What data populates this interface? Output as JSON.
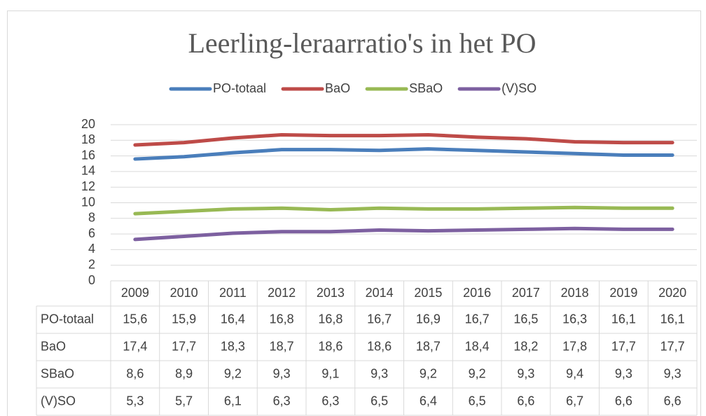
{
  "chart_data": {
    "type": "line",
    "title": "Leerling-leraarratio's in het PO",
    "categories": [
      "2009",
      "2010",
      "2011",
      "2012",
      "2013",
      "2014",
      "2015",
      "2016",
      "2017",
      "2018",
      "2019",
      "2020"
    ],
    "series": [
      {
        "name": "PO-totaal",
        "color": "#4a7ebb",
        "values": [
          15.6,
          15.9,
          16.4,
          16.8,
          16.8,
          16.7,
          16.9,
          16.7,
          16.5,
          16.3,
          16.1,
          16.1
        ],
        "value_labels": [
          "15,6",
          "15,9",
          "16,4",
          "16,8",
          "16,8",
          "16,7",
          "16,9",
          "16,7",
          "16,5",
          "16,3",
          "16,1",
          "16,1"
        ]
      },
      {
        "name": "BaO",
        "color": "#be4b48",
        "values": [
          17.4,
          17.7,
          18.3,
          18.7,
          18.6,
          18.6,
          18.7,
          18.4,
          18.2,
          17.8,
          17.7,
          17.7
        ],
        "value_labels": [
          "17,4",
          "17,7",
          "18,3",
          "18,7",
          "18,6",
          "18,6",
          "18,7",
          "18,4",
          "18,2",
          "17,8",
          "17,7",
          "17,7"
        ]
      },
      {
        "name": "SBaO",
        "color": "#98b954",
        "values": [
          8.6,
          8.9,
          9.2,
          9.3,
          9.1,
          9.3,
          9.2,
          9.2,
          9.3,
          9.4,
          9.3,
          9.3
        ],
        "value_labels": [
          "8,6",
          "8,9",
          "9,2",
          "9,3",
          "9,1",
          "9,3",
          "9,2",
          "9,2",
          "9,3",
          "9,4",
          "9,3",
          "9,3"
        ]
      },
      {
        "name": "(V)SO",
        "color": "#7d60a0",
        "values": [
          5.3,
          5.7,
          6.1,
          6.3,
          6.3,
          6.5,
          6.4,
          6.5,
          6.6,
          6.7,
          6.6,
          6.6
        ],
        "value_labels": [
          "5,3",
          "5,7",
          "6,1",
          "6,3",
          "6,3",
          "6,5",
          "6,4",
          "6,5",
          "6,6",
          "6,7",
          "6,6",
          "6,6"
        ]
      }
    ],
    "ylim": [
      0,
      20
    ],
    "yticks": [
      0,
      2,
      4,
      6,
      8,
      10,
      12,
      14,
      16,
      18,
      20
    ],
    "grid": true,
    "legend": "top"
  }
}
